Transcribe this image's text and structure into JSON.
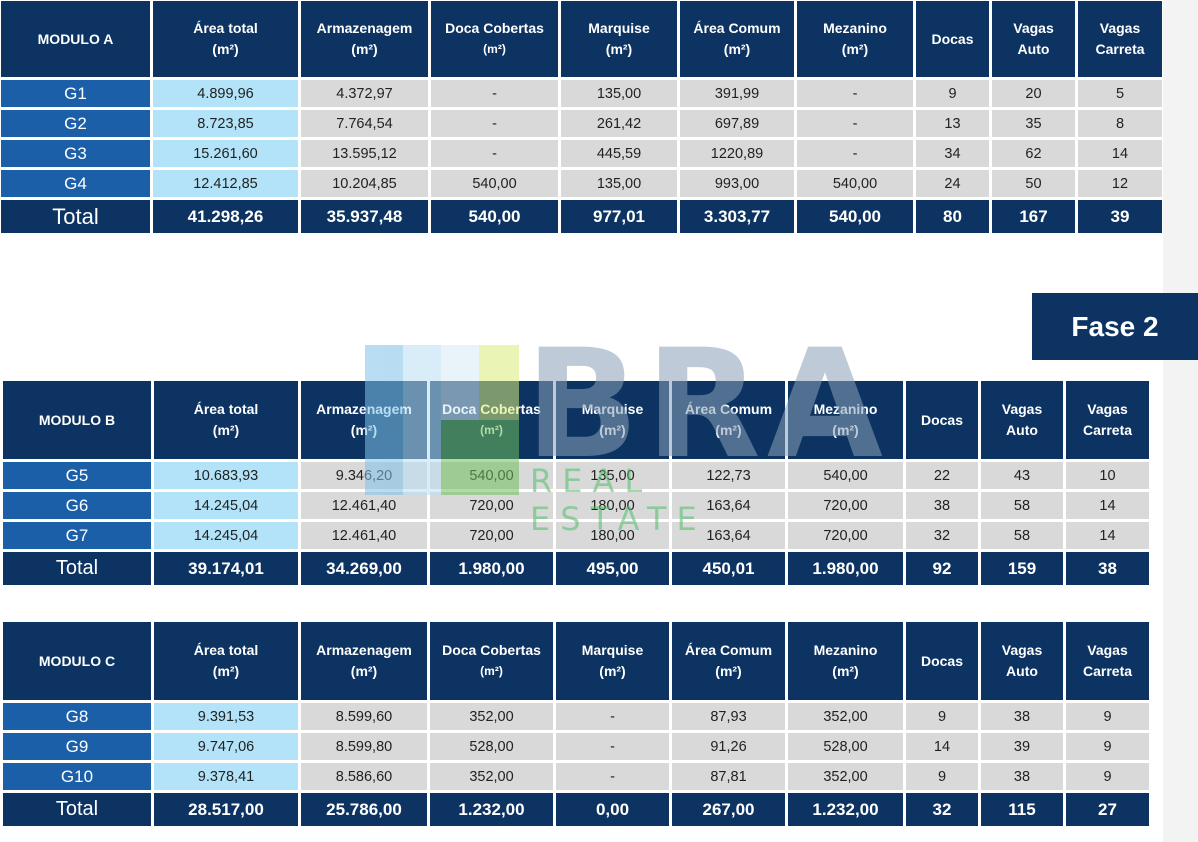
{
  "headers": {
    "area_total": [
      "Área total",
      "(m²)"
    ],
    "armazenagem": [
      "Armazenagem",
      "(m²)"
    ],
    "doca_cobertas": [
      "Doca Cobertas",
      "(m²)"
    ],
    "marquise": [
      "Marquise",
      "(m²)"
    ],
    "area_comum": [
      "Área Comum",
      "(m²)"
    ],
    "mezanino": [
      "Mezanino",
      "(m²)"
    ],
    "docas": [
      "Docas"
    ],
    "vagas_auto": [
      "Vagas",
      "Auto"
    ],
    "vagas_carreta": [
      "Vagas",
      "Carreta"
    ]
  },
  "modules": [
    {
      "name": "MODULO A",
      "rows": [
        [
          "G1",
          "4.899,96",
          "4.372,97",
          "-",
          "135,00",
          "391,99",
          "-",
          "9",
          "20",
          "5"
        ],
        [
          "G2",
          "8.723,85",
          "7.764,54",
          "-",
          "261,42",
          "697,89",
          "-",
          "13",
          "35",
          "8"
        ],
        [
          "G3",
          "15.261,60",
          "13.595,12",
          "-",
          "445,59",
          "1220,89",
          "-",
          "34",
          "62",
          "14"
        ],
        [
          "G4",
          "12.412,85",
          "10.204,85",
          "540,00",
          "135,00",
          "993,00",
          "540,00",
          "24",
          "50",
          "12"
        ]
      ],
      "total": [
        "Total",
        "41.298,26",
        "35.937,48",
        "540,00",
        "977,01",
        "3.303,77",
        "540,00",
        "80",
        "167",
        "39"
      ]
    },
    {
      "name": "MODULO B",
      "rows": [
        [
          "G5",
          "10.683,93",
          "9.346,20",
          "540,00",
          "135,00",
          "122,73",
          "540,00",
          "22",
          "43",
          "10"
        ],
        [
          "G6",
          "14.245,04",
          "12.461,40",
          "720,00",
          "180,00",
          "163,64",
          "720,00",
          "38",
          "58",
          "14"
        ],
        [
          "G7",
          "14.245,04",
          "12.461,40",
          "720,00",
          "180,00",
          "163,64",
          "720,00",
          "32",
          "58",
          "14"
        ]
      ],
      "total": [
        "Total",
        "39.174,01",
        "34.269,00",
        "1.980,00",
        "495,00",
        "450,01",
        "1.980,00",
        "92",
        "159",
        "38"
      ]
    },
    {
      "name": "MODULO C",
      "rows": [
        [
          "G8",
          "9.391,53",
          "8.599,60",
          "352,00",
          "-",
          "87,93",
          "352,00",
          "9",
          "38",
          "9"
        ],
        [
          "G9",
          "9.747,06",
          "8.599,80",
          "528,00",
          "-",
          "91,26",
          "528,00",
          "14",
          "39",
          "9"
        ],
        [
          "G10",
          "9.378,41",
          "8.586,60",
          "352,00",
          "-",
          "87,81",
          "352,00",
          "9",
          "38",
          "9"
        ]
      ],
      "total": [
        "Total",
        "28.517,00",
        "25.786,00",
        "1.232,00",
        "0,00",
        "267,00",
        "1.232,00",
        "32",
        "115",
        "27"
      ]
    }
  ],
  "phase_label": "Fase 2",
  "watermark": {
    "brand": "BRA",
    "tagline": "REAL ESTATE"
  },
  "colors": {
    "navy": "#0c3361",
    "row_blue": "#1b5fa8",
    "area_light_blue": "#b3e3f8",
    "row_gray": "#d9d9d9"
  }
}
